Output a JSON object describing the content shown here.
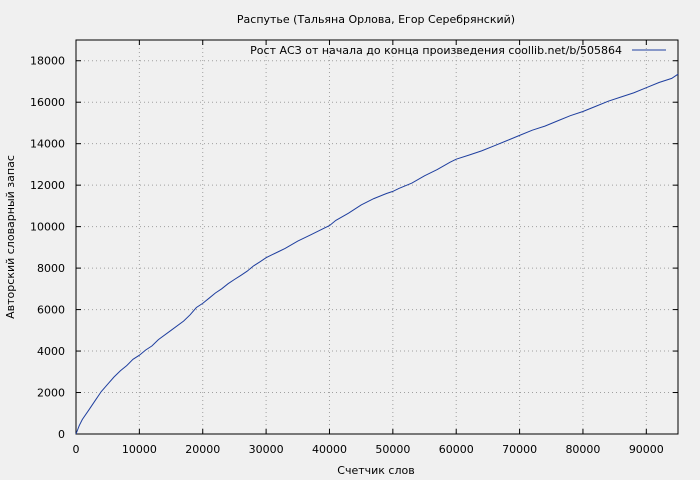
{
  "chart_data": {
    "type": "line",
    "title": "Распутье (Тальяна Орлова, Егор Серебрянский)",
    "xlabel": "Счетчик слов",
    "ylabel": "Авторский словарный запас",
    "xlim": [
      0,
      95000
    ],
    "ylim": [
      0,
      19000
    ],
    "x_ticks": [
      0,
      10000,
      20000,
      30000,
      40000,
      50000,
      60000,
      70000,
      80000,
      90000
    ],
    "y_ticks": [
      0,
      2000,
      4000,
      6000,
      8000,
      10000,
      12000,
      14000,
      16000,
      18000
    ],
    "grid": true,
    "legend_position": "top-right",
    "series": [
      {
        "name": "Рост АСЗ от начала до конца произведения  coollib.net/b/505864",
        "color": "#1f3f9f",
        "x": [
          0,
          500,
          1000,
          2000,
          3000,
          4000,
          5000,
          6000,
          7000,
          8000,
          9000,
          10000,
          11000,
          12000,
          13000,
          15000,
          17000,
          18000,
          19000,
          20000,
          21000,
          22000,
          23000,
          24000,
          25000,
          26000,
          27000,
          28000,
          29000,
          30000,
          31000,
          32000,
          33000,
          35000,
          37000,
          39000,
          40000,
          41000,
          43000,
          45000,
          47000,
          49000,
          50000,
          51000,
          53000,
          55000,
          57000,
          59000,
          60000,
          62000,
          64000,
          66000,
          68000,
          70000,
          72000,
          74000,
          76000,
          78000,
          80000,
          82000,
          84000,
          86000,
          88000,
          90000,
          92000,
          94000,
          95000
        ],
        "y": [
          0,
          400,
          700,
          1150,
          1600,
          2050,
          2400,
          2750,
          3050,
          3300,
          3600,
          3800,
          4050,
          4250,
          4550,
          5000,
          5450,
          5750,
          6100,
          6300,
          6550,
          6800,
          7000,
          7250,
          7450,
          7650,
          7850,
          8100,
          8300,
          8500,
          8650,
          8800,
          8950,
          9300,
          9600,
          9900,
          10050,
          10300,
          10650,
          11050,
          11350,
          11600,
          11700,
          11850,
          12100,
          12450,
          12750,
          13100,
          13250,
          13450,
          13650,
          13900,
          14150,
          14400,
          14650,
          14850,
          15100,
          15350,
          15550,
          15800,
          16050,
          16250,
          16450,
          16700,
          16950,
          17150,
          17350
        ]
      }
    ]
  }
}
